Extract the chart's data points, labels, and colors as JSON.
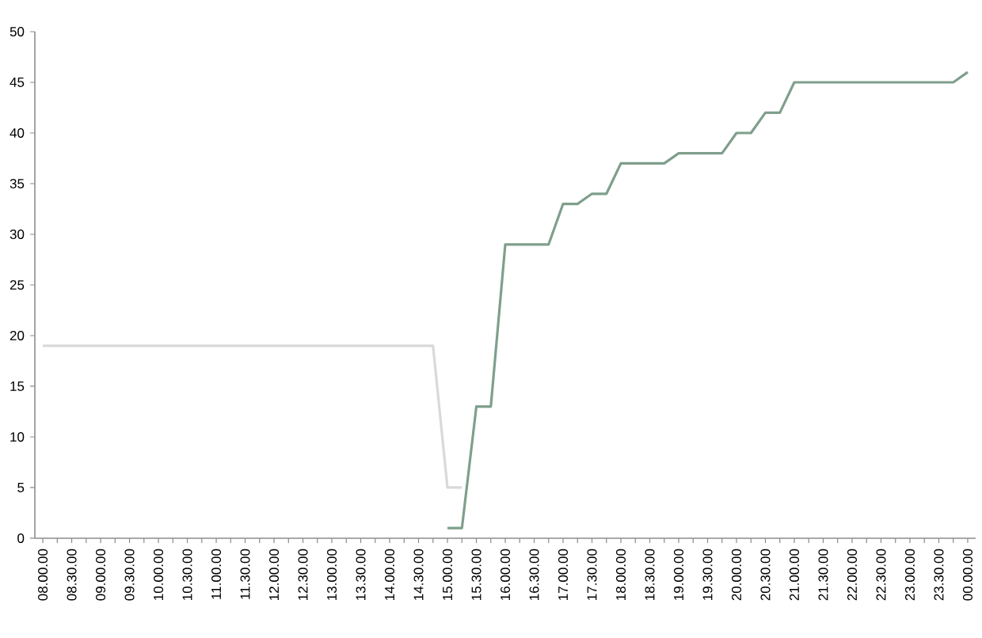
{
  "chart_data": {
    "type": "line",
    "grid": false,
    "marker": "none",
    "line_style": "solid",
    "categories": [
      "08.00.00",
      null,
      "08.30.00",
      null,
      "09.00.00",
      null,
      "09.30.00",
      null,
      "10.00.00",
      null,
      "10.30.00",
      null,
      "11.00.00",
      null,
      "11.30.00",
      null,
      "12.00.00",
      null,
      "12.30.00",
      null,
      "13.00.00",
      null,
      "13.30.00",
      null,
      "14.00.00",
      null,
      "14.30.00",
      null,
      "15.00.00",
      null,
      "15.30.00",
      null,
      "16.00.00",
      null,
      "16.30.00",
      null,
      "17.00.00",
      null,
      "17.30.00",
      null,
      "18.00.00",
      null,
      "18.30.00",
      null,
      "19.00.00",
      null,
      "19.30.00",
      null,
      "20.00.00",
      null,
      "20.30.00",
      null,
      "21.00.00",
      null,
      "21.30.00",
      null,
      "22.00.00",
      null,
      "22.30.00",
      null,
      "23.00.00",
      null,
      "23.30.00",
      null,
      "00.00.00"
    ],
    "ylim": [
      0,
      50
    ],
    "yticks": [
      0,
      5,
      10,
      15,
      20,
      25,
      30,
      35,
      40,
      45,
      50
    ],
    "series": [
      {
        "color": "#d9d9d9",
        "values": [
          19,
          19,
          19,
          19,
          19,
          19,
          19,
          19,
          19,
          19,
          19,
          19,
          19,
          19,
          19,
          19,
          19,
          19,
          19,
          19,
          19,
          19,
          19,
          19,
          19,
          19,
          19,
          19,
          5,
          5,
          null,
          null,
          null,
          null,
          null,
          null,
          null,
          null,
          null,
          null,
          null,
          null,
          null,
          null,
          null,
          null,
          null,
          null,
          null,
          null,
          null,
          null,
          null,
          null,
          null,
          null,
          null,
          null,
          null,
          null,
          null,
          null,
          null,
          null,
          null
        ]
      },
      {
        "color": "#7f9f8c",
        "values": [
          null,
          null,
          null,
          null,
          null,
          null,
          null,
          null,
          null,
          null,
          null,
          null,
          null,
          null,
          null,
          null,
          null,
          null,
          null,
          null,
          null,
          null,
          null,
          null,
          null,
          null,
          null,
          null,
          1,
          1,
          13,
          13,
          29,
          29,
          29,
          29,
          33,
          33,
          34,
          34,
          37,
          37,
          37,
          37,
          38,
          38,
          38,
          38,
          40,
          40,
          42,
          42,
          45,
          45,
          45,
          45,
          45,
          45,
          45,
          45,
          45,
          45,
          45,
          45,
          46
        ]
      }
    ]
  }
}
